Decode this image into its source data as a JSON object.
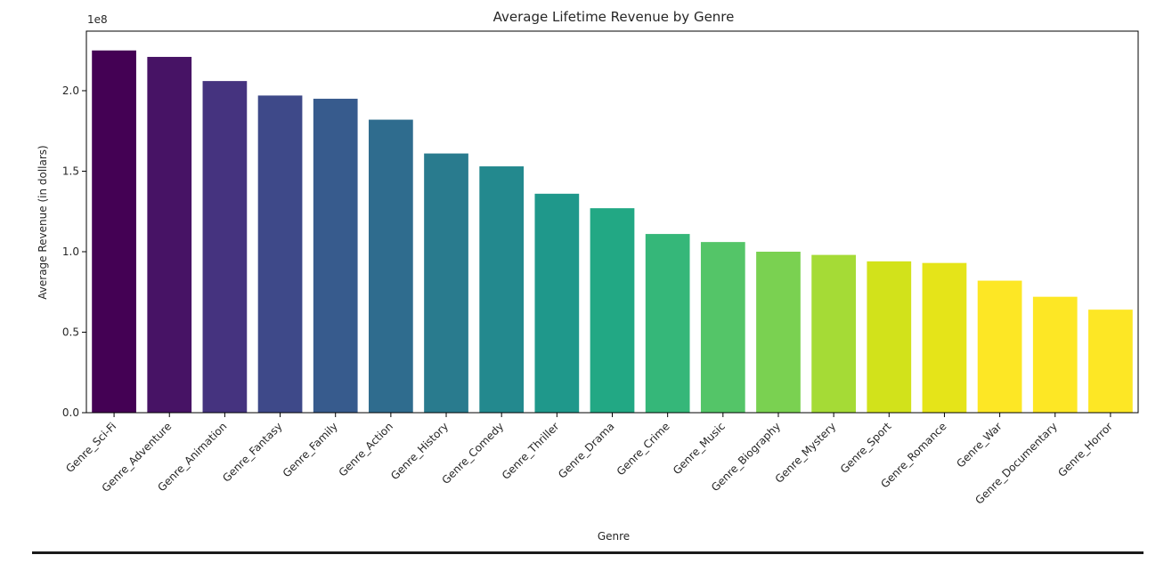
{
  "chart_data": {
    "type": "bar",
    "title": "Average Lifetime Revenue by Genre",
    "xlabel": "Genre",
    "ylabel": "Average Revenue (in dollars)",
    "y_scale_label": "1e8",
    "ylim": [
      0,
      2.37
    ],
    "yticks": [
      "0.0",
      "0.5",
      "1.0",
      "1.5",
      "2.0"
    ],
    "ytick_values": [
      0.0,
      0.5,
      1.0,
      1.5,
      2.0
    ],
    "categories": [
      "Genre_Sci-Fi",
      "Genre_Adventure",
      "Genre_Animation",
      "Genre_Fantasy",
      "Genre_Family",
      "Genre_Action",
      "Genre_History",
      "Genre_Comedy",
      "Genre_Thriller",
      "Genre_Drama",
      "Genre_Crime",
      "Genre_Music",
      "Genre_Biography",
      "Genre_Mystery",
      "Genre_Sport",
      "Genre_Romance",
      "Genre_War",
      "Genre_Documentary",
      "Genre_Horror"
    ],
    "values": [
      2.25,
      2.21,
      2.06,
      1.97,
      1.95,
      1.82,
      1.61,
      1.53,
      1.36,
      1.27,
      1.11,
      1.06,
      1.0,
      0.98,
      0.94,
      0.93,
      0.82,
      0.72,
      0.64
    ],
    "colors": [
      "#440154",
      "#471365",
      "#45337f",
      "#3e4989",
      "#375b8d",
      "#2f6c8e",
      "#297b8e",
      "#23898e",
      "#1f988b",
      "#22a884",
      "#35b779",
      "#54c568",
      "#7ad151",
      "#a5db36",
      "#d2e21b",
      "#e5e419",
      "#fde725",
      "#fde725",
      "#fde725"
    ],
    "legend": "none",
    "grid": false
  }
}
